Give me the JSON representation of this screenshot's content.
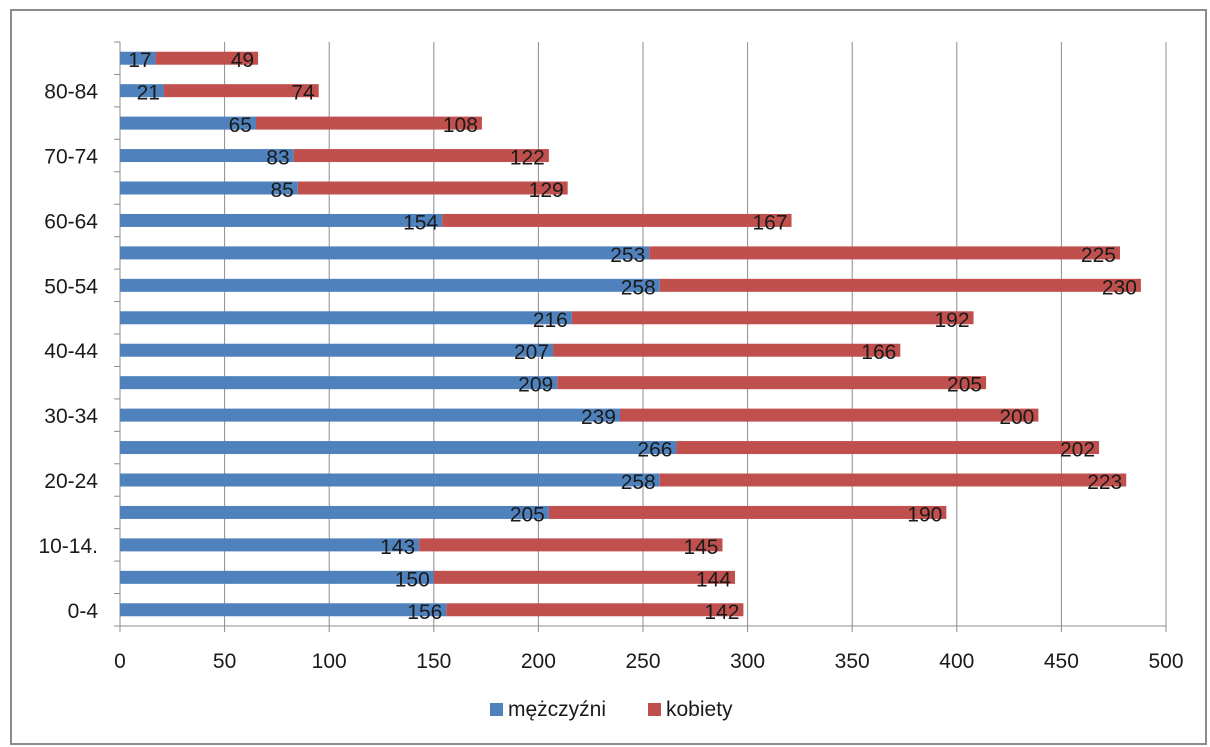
{
  "chart_data": {
    "type": "bar",
    "orientation": "horizontal",
    "stacked": true,
    "categories": [
      "0-4",
      "",
      "10-14.",
      "",
      "20-24",
      "",
      "30-34",
      "",
      "40-44",
      "",
      "50-54",
      "",
      "60-64",
      "",
      "70-74",
      "",
      "80-84",
      ""
    ],
    "series": [
      {
        "name": "mężczyźni",
        "color": "#4f81bd",
        "values": [
          156,
          150,
          143,
          205,
          258,
          266,
          239,
          209,
          207,
          216,
          258,
          253,
          154,
          85,
          83,
          65,
          21,
          17
        ]
      },
      {
        "name": "kobiety",
        "color": "#c0504d",
        "values": [
          142,
          144,
          145,
          190,
          223,
          202,
          200,
          205,
          166,
          192,
          230,
          225,
          167,
          129,
          122,
          108,
          74,
          49
        ]
      }
    ],
    "xlim": [
      0,
      500
    ],
    "xticks": [
      0,
      50,
      100,
      150,
      200,
      250,
      300,
      350,
      400,
      450,
      500
    ],
    "grid": "vertical",
    "legend_position": "bottom"
  }
}
